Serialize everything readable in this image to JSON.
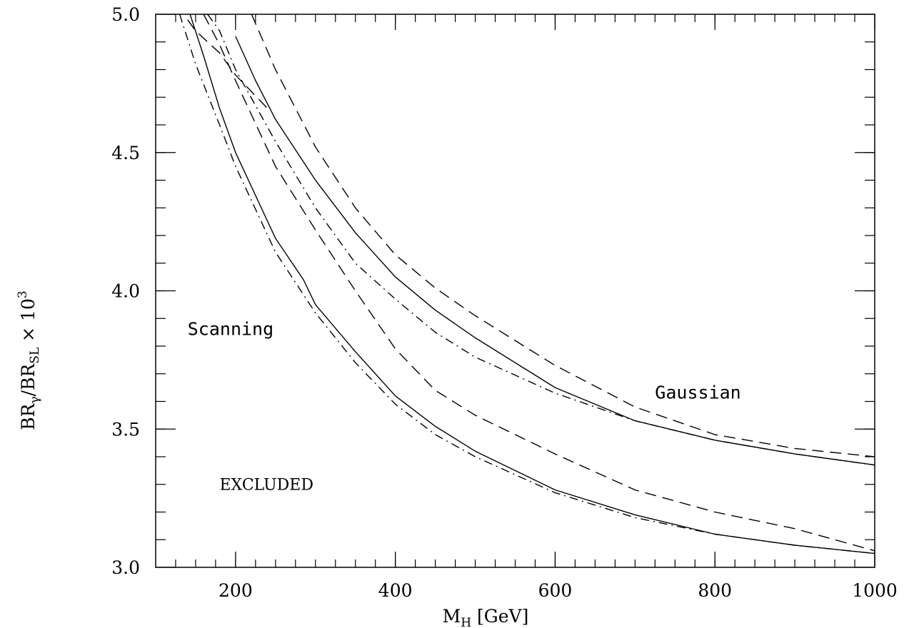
{
  "chart_data": {
    "type": "line",
    "xlabel": {
      "main": "M",
      "sub": "H",
      "rest": " [GeV]"
    },
    "ylabel": {
      "p1": "BR",
      "sub1": "γ",
      "p2": "/BR",
      "sub2": "SL",
      "p3": " × 10",
      "sup": "3"
    },
    "xlim": [
      100,
      1000
    ],
    "ylim": [
      3.0,
      5.0
    ],
    "x_ticks": [
      200,
      400,
      600,
      800,
      1000
    ],
    "x_tick_labels": [
      "200",
      "400",
      "600",
      "800",
      "1000"
    ],
    "y_ticks": [
      3.0,
      3.5,
      4.0,
      4.5,
      5.0
    ],
    "y_tick_labels": [
      "3.0",
      "3.5",
      "4.0",
      "4.5",
      "5.0"
    ],
    "annotations": [
      {
        "key": "scanning",
        "text": "Scanning",
        "x": 140,
        "y": 3.84
      },
      {
        "key": "gaussian",
        "text": "Gaussian",
        "x": 725,
        "y": 3.61
      },
      {
        "key": "excluded",
        "text": "EXCLUDED",
        "x": 180,
        "y": 3.28
      }
    ],
    "series": [
      {
        "style": "solid",
        "x": [
          143,
          160,
          180,
          200,
          250,
          285,
          300,
          350,
          400,
          450,
          500,
          600,
          700,
          800,
          900,
          1000
        ],
        "y": [
          5.0,
          4.85,
          4.66,
          4.5,
          4.19,
          4.04,
          3.95,
          3.78,
          3.62,
          3.51,
          3.42,
          3.28,
          3.19,
          3.12,
          3.08,
          3.05
        ]
      },
      {
        "style": "dashdot",
        "x": [
          130,
          150,
          180,
          200,
          250,
          300,
          350,
          400,
          450,
          500,
          600,
          700,
          800,
          900,
          1000
        ],
        "y": [
          5.0,
          4.82,
          4.6,
          4.45,
          4.14,
          3.92,
          3.74,
          3.59,
          3.48,
          3.4,
          3.27,
          3.18,
          3.12,
          3.08,
          3.05
        ]
      },
      {
        "style": "dashed",
        "x": [
          160,
          180,
          200,
          250,
          300,
          350,
          400,
          450,
          500,
          600,
          700,
          800,
          900,
          1000
        ],
        "y": [
          5.0,
          4.89,
          4.76,
          4.45,
          4.22,
          4.0,
          3.79,
          3.64,
          3.55,
          3.41,
          3.28,
          3.2,
          3.14,
          3.06
        ]
      },
      {
        "style": "dashdot",
        "x": [
          165,
          180,
          200,
          250,
          300,
          350,
          400,
          450,
          500,
          600,
          700,
          800,
          900,
          1000
        ],
        "y": [
          5.0,
          4.94,
          4.8,
          4.54,
          4.3,
          4.1,
          3.97,
          3.85,
          3.76,
          3.63,
          3.53,
          3.46,
          3.41,
          3.37
        ]
      },
      {
        "style": "solid",
        "x": [
          200,
          225,
          250,
          300,
          350,
          400,
          450,
          500,
          600,
          700,
          800,
          900,
          1000
        ],
        "y": [
          4.92,
          4.76,
          4.62,
          4.4,
          4.21,
          4.05,
          3.93,
          3.83,
          3.65,
          3.53,
          3.46,
          3.41,
          3.37
        ]
      },
      {
        "style": "dashed",
        "x": [
          220,
          250,
          300,
          350,
          400,
          450,
          500,
          600,
          700,
          800,
          900,
          1000
        ],
        "y": [
          5.0,
          4.8,
          4.52,
          4.3,
          4.13,
          4.01,
          3.91,
          3.73,
          3.58,
          3.48,
          3.43,
          3.4
        ]
      },
      {
        "style": "dashed",
        "x": [
          140,
          150,
          180,
          200,
          220,
          240
        ],
        "y": [
          4.98,
          4.94,
          4.86,
          4.78,
          4.72,
          4.66
        ]
      }
    ]
  }
}
